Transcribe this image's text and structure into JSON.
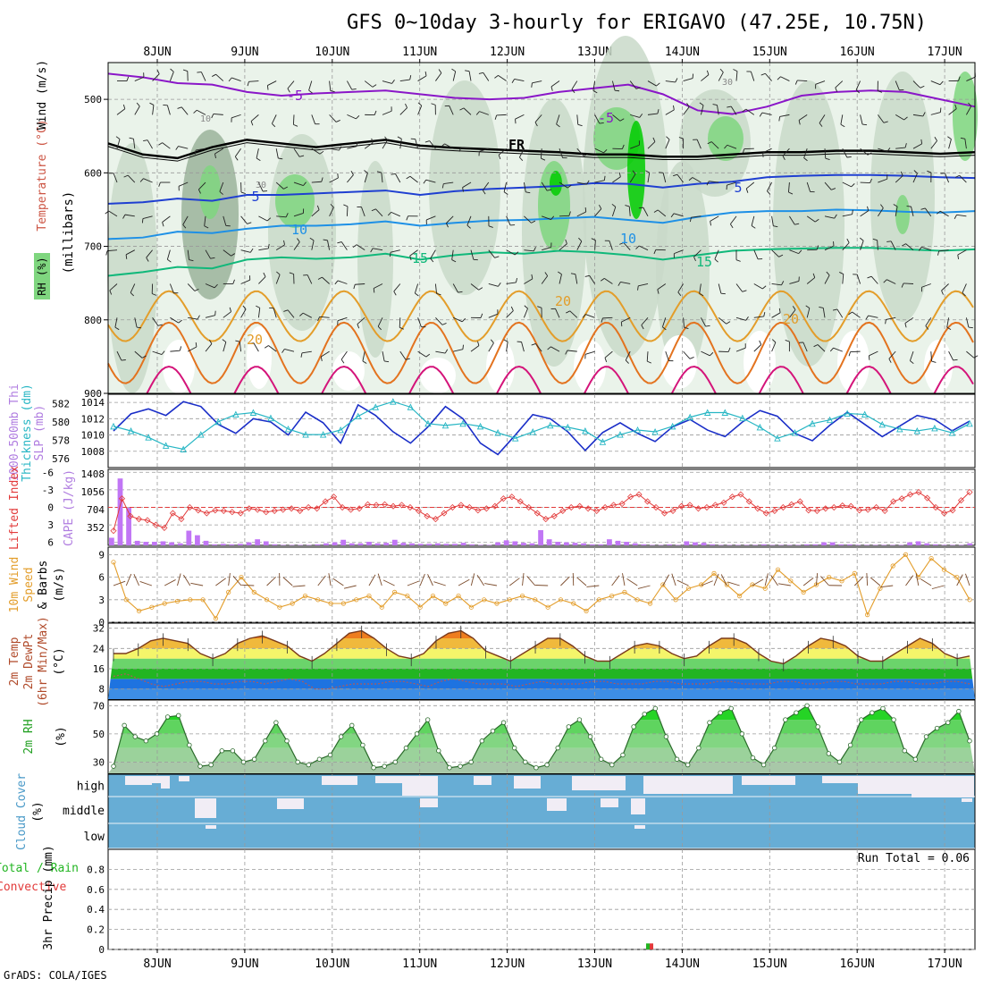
{
  "title": "GFS 0~10day 3-hourly for ERIGAVO (47.25E, 10.75N)",
  "footer": "GrADS: COLA/IGES",
  "dates": [
    "8JUN",
    "9JUN",
    "10JUN",
    "11JUN",
    "12JUN",
    "13JUN",
    "14JUN",
    "15JUN",
    "16JUN",
    "17JUN"
  ],
  "colors": {
    "rh_light": "#eaf3ea",
    "rh_mid": "#c9d9c9",
    "rh_dark": "#9bb39b",
    "rh_green": "#7fd67f",
    "rh_bright": "#00cc00",
    "temp_m5": "#8a16c8",
    "temp_5": "#1f3fd1",
    "temp_10": "#1e90e6",
    "temp_15": "#10b87a",
    "temp_20": "#e39d2a",
    "temp_25": "#e3731f",
    "temp_30": "#d4147a",
    "slp": "#1a2ec8",
    "thickness": "#27b6c4",
    "lifted": "#e23a3a",
    "cape": "#c176f5",
    "wind10m": "#e39d2a",
    "cloud_bg": "#67add5",
    "cloud_gap": "#f1edf5",
    "precip_total": "#22b522",
    "precip_conv": "#e23a3a"
  },
  "chart_data": [
    {
      "type": "heatmap",
      "panel": "upper-air",
      "ylabels": [
        "RH (%)",
        "Temperature (°C)",
        "Wind (m/s)",
        "(millibars)"
      ],
      "yticks": [
        500,
        600,
        700,
        800,
        900
      ],
      "ylim": [
        900,
        450
      ],
      "contour_labels": [
        {
          "text": "-5",
          "value": -5
        },
        {
          "text": "5",
          "value": 5
        },
        {
          "text": "10",
          "value": 10
        },
        {
          "text": "15",
          "value": 15
        },
        {
          "text": "20",
          "value": 20
        },
        {
          "text": "FR",
          "value": 0
        },
        {
          "text": "10",
          "value": 10,
          "field": "rh"
        },
        {
          "text": "30",
          "value": 30,
          "field": "rh"
        }
      ],
      "series": [
        {
          "name": "-5",
          "level_mb": [
            465,
            470,
            478,
            480,
            490,
            495,
            492,
            490,
            488,
            493,
            498,
            500,
            498,
            490,
            485,
            480,
            493,
            515,
            520,
            510,
            495,
            490,
            488,
            490,
            500,
            510
          ]
        },
        {
          "name": "5",
          "level_mb": [
            642,
            640,
            635,
            638,
            630,
            630,
            628,
            626,
            624,
            630,
            625,
            622,
            620,
            618,
            614,
            615,
            620,
            615,
            612,
            606,
            604,
            603,
            603,
            604,
            606,
            607
          ]
        },
        {
          "name": "10",
          "level_mb": [
            690,
            688,
            680,
            682,
            676,
            672,
            672,
            670,
            666,
            672,
            668,
            665,
            664,
            662,
            660,
            664,
            668,
            660,
            654,
            652,
            652,
            650,
            651,
            653,
            654,
            652
          ]
        },
        {
          "name": "15",
          "level_mb": [
            740,
            735,
            728,
            730,
            718,
            715,
            717,
            715,
            710,
            718,
            712,
            708,
            710,
            706,
            708,
            712,
            718,
            712,
            706,
            704,
            703,
            702,
            702,
            704,
            706,
            704
          ]
        },
        {
          "name": "FR",
          "level_mb": [
            560,
            575,
            580,
            565,
            555,
            560,
            565,
            560,
            555,
            563,
            566,
            568,
            570,
            572,
            575,
            575,
            578,
            578,
            575,
            572,
            572,
            570,
            570,
            572,
            574,
            572
          ]
        }
      ]
    },
    {
      "type": "line",
      "panel": "slp-thickness",
      "ylabels": [
        "1000-500mb Thickness (dm)",
        "SLP (mb)"
      ],
      "left_ticks": [
        576,
        578,
        580,
        582
      ],
      "right_ticks": [
        1008,
        1010,
        1012,
        1014
      ],
      "series": [
        {
          "name": "SLP",
          "axis": "right",
          "values": [
            1010.5,
            1012.6,
            1013.2,
            1012.4,
            1014.1,
            1013.5,
            1011.3,
            1010.2,
            1012.0,
            1011.6,
            1010.0,
            1012.8,
            1011.5,
            1009.0,
            1013.7,
            1012.4,
            1010.4,
            1009.0,
            1011.0,
            1013.5,
            1012.0,
            1009.0,
            1007.6,
            1010.0,
            1012.5,
            1012.0,
            1010.4,
            1008.1,
            1010.3,
            1011.5,
            1010.2,
            1009.2,
            1011.0,
            1011.9,
            1010.6,
            1009.8,
            1011.6,
            1013.0,
            1012.3,
            1010.2,
            1009.3,
            1011.2,
            1012.8,
            1011.3,
            1009.8,
            1011.1,
            1012.4,
            1011.9,
            1010.5,
            1011.7
          ]
        },
        {
          "name": "Thickness",
          "axis": "left",
          "values": [
            579.5,
            579.0,
            578.3,
            577.4,
            577.0,
            578.6,
            580.0,
            580.8,
            581.0,
            580.4,
            579.2,
            578.6,
            578.6,
            579.1,
            580.6,
            581.6,
            582.2,
            581.6,
            579.8,
            579.6,
            579.8,
            579.5,
            578.8,
            578.2,
            578.9,
            579.6,
            579.4,
            579.0,
            577.8,
            578.6,
            579.1,
            578.9,
            579.5,
            580.5,
            581.0,
            581.0,
            580.4,
            579.4,
            578.2,
            578.8,
            579.8,
            580.2,
            580.9,
            580.8,
            579.7,
            579.2,
            579.0,
            579.3,
            578.8,
            579.8
          ]
        }
      ]
    },
    {
      "type": "bar",
      "panel": "cape-lifted",
      "ylabels": [
        "Lifted Index",
        "CAPE (J/kg)"
      ],
      "left_ticks": [
        6,
        3,
        0,
        -3,
        -6
      ],
      "right_ticks": [
        352,
        704,
        1056,
        1408
      ],
      "series": [
        {
          "name": "CAPE",
          "axis": "right",
          "values": [
            150,
            1320,
            740,
            90,
            70,
            70,
            80,
            60,
            40,
            290,
            200,
            90,
            20,
            30,
            20,
            30,
            60,
            120,
            80,
            20,
            10,
            10,
            10,
            10,
            20,
            40,
            60,
            110,
            40,
            40,
            70,
            40,
            50,
            110,
            50,
            40,
            30,
            30,
            40,
            30,
            30,
            50,
            20,
            10,
            10,
            60,
            100,
            80,
            50,
            40,
            300,
            120,
            70,
            60,
            50,
            40,
            20,
            20,
            120,
            90,
            70,
            40,
            20,
            10,
            10,
            20,
            10,
            80,
            60,
            50,
            20,
            10,
            10,
            10,
            10,
            10,
            20,
            10,
            10,
            10,
            10,
            20,
            20,
            60,
            60,
            20,
            20,
            10,
            10,
            10,
            10,
            10,
            10,
            60,
            80,
            40,
            20,
            10,
            10,
            10,
            40
          ]
        },
        {
          "name": "Lifted Index",
          "axis": "left",
          "values": [
            4.0,
            -1.5,
            1.5,
            2.0,
            2.2,
            3.0,
            3.5,
            1.0,
            2.0,
            0.0,
            0.5,
            1.0,
            0.5,
            0.6,
            0.8,
            1.0,
            0.2,
            0.4,
            0.8,
            0.6,
            0.4,
            0.2,
            0.6,
            0.0,
            0.2,
            -1.0,
            -1.8,
            0.0,
            0.4,
            0.2,
            -0.5,
            -0.4,
            -0.5,
            -0.2,
            -0.4,
            0.0,
            0.6,
            1.5,
            2.0,
            1.0,
            0.0,
            -0.4,
            0.0,
            0.5,
            0.2,
            -0.2,
            -1.5,
            -1.8,
            -1.0,
            0.0,
            1.0,
            2.0,
            1.5,
            0.6,
            0.0,
            -0.2,
            0.2,
            0.6,
            0.0,
            -0.4,
            -0.6,
            -1.8,
            -2.2,
            -1.0,
            0.0,
            1.0,
            0.6,
            -0.2,
            -0.4,
            0.2,
            0.0,
            -0.4,
            -0.8,
            -1.8,
            -2.2,
            -1.0,
            0.2,
            1.0,
            0.6,
            0.0,
            -0.5,
            -1.0,
            0.5,
            0.6,
            0.2,
            0.0,
            -0.3,
            -0.2,
            0.5,
            0.4,
            0.0,
            0.6,
            -1.0,
            -1.5,
            -2.2,
            -2.6,
            -1.6,
            0.0,
            1.0,
            0.5,
            -1.2,
            -2.6
          ]
        }
      ]
    },
    {
      "type": "line",
      "panel": "wind10m",
      "ylabels": [
        "10m Wind",
        "Speed",
        "& Barbs",
        "(m/s)"
      ],
      "yticks": [
        0,
        3,
        6,
        9
      ],
      "series": [
        {
          "name": "10m Wind Speed",
          "values": [
            8.0,
            3.0,
            1.5,
            2.0,
            2.5,
            2.8,
            3.0,
            3.0,
            0.5,
            4.0,
            6.0,
            4.0,
            3.0,
            2.0,
            2.5,
            3.5,
            3.0,
            2.5,
            2.5,
            3.0,
            3.5,
            2.0,
            4.0,
            3.5,
            2.0,
            3.5,
            2.5,
            3.5,
            2.0,
            3.0,
            2.5,
            3.0,
            3.5,
            3.0,
            2.0,
            3.0,
            2.5,
            1.5,
            3.0,
            3.5,
            4.0,
            3.0,
            2.5,
            5.0,
            3.0,
            4.5,
            5.0,
            6.5,
            5.0,
            3.5,
            5.0,
            4.5,
            7.0,
            5.5,
            4.0,
            5.0,
            6.0,
            5.5,
            6.5,
            1.0,
            4.5,
            7.5,
            9.0,
            6.0,
            8.5,
            7.0,
            6.0,
            3.0
          ]
        }
      ]
    },
    {
      "type": "area",
      "panel": "temp-dewpt",
      "ylabels": [
        "2m Temp",
        "2m DewPt",
        "(6hr Min/Max)",
        "(°C)"
      ],
      "yticks": [
        8,
        16,
        24,
        32
      ],
      "series": [
        {
          "name": "2m Temp",
          "values": [
            22,
            22,
            24,
            27,
            28,
            27,
            26,
            22,
            20,
            22,
            26,
            28,
            29,
            27,
            25,
            21,
            19,
            22,
            26,
            30,
            31,
            28,
            24,
            21,
            20,
            22,
            27,
            30,
            31,
            28,
            23,
            21,
            19,
            22,
            25,
            28,
            28,
            25,
            21,
            19,
            19,
            22,
            25,
            26,
            25,
            22,
            20,
            21,
            25,
            28,
            28,
            26,
            22,
            19,
            18,
            21,
            25,
            28,
            27,
            25,
            21,
            19,
            19,
            22,
            25,
            28,
            26,
            22,
            20,
            21
          ]
        },
        {
          "name": "2m DewPt",
          "values": [
            13,
            14,
            12,
            10,
            9,
            10,
            11,
            11,
            10,
            10,
            11,
            11,
            10,
            11,
            12,
            11,
            8,
            8,
            9,
            10,
            10,
            10,
            11,
            11,
            10,
            9,
            11,
            12,
            11,
            10,
            10,
            10,
            9,
            10,
            11,
            10,
            10,
            10,
            11,
            11,
            10,
            10,
            10,
            11,
            11,
            10,
            10,
            10,
            11,
            11,
            10,
            10,
            10,
            11,
            11,
            10,
            10,
            11,
            11,
            10,
            10,
            10,
            11,
            11,
            10,
            10,
            11,
            11,
            10
          ]
        }
      ]
    },
    {
      "type": "area",
      "panel": "rh2m",
      "ylabels": [
        "2m RH",
        "(%)"
      ],
      "yticks": [
        30,
        50,
        70
      ],
      "series": [
        {
          "name": "2m RH",
          "values": [
            27,
            56,
            48,
            45,
            50,
            62,
            63,
            42,
            27,
            28,
            38,
            38,
            30,
            32,
            45,
            58,
            45,
            30,
            28,
            32,
            35,
            48,
            56,
            42,
            26,
            27,
            30,
            40,
            50,
            60,
            38,
            26,
            27,
            30,
            45,
            52,
            58,
            40,
            30,
            26,
            28,
            40,
            55,
            60,
            48,
            32,
            28,
            35,
            55,
            64,
            68,
            48,
            32,
            28,
            40,
            58,
            65,
            68,
            50,
            33,
            28,
            40,
            60,
            65,
            70,
            55,
            36,
            30,
            42,
            60,
            65,
            68,
            60,
            38,
            32,
            48,
            54,
            58,
            66,
            45
          ]
        }
      ]
    },
    {
      "type": "bar",
      "panel": "cloud",
      "ylabels": [
        "Cloud Cover",
        "(%)"
      ],
      "categories": [
        "high",
        "middle",
        "low"
      ]
    },
    {
      "type": "bar",
      "panel": "precip",
      "ylabels": [
        "Total / Rain",
        "Convective",
        "3hr Precip (mm)"
      ],
      "yticks": [
        0,
        0.2,
        0.4,
        0.6,
        0.8
      ],
      "annotation": "Run Total = 0.06",
      "series": [
        {
          "name": "Total / Rain",
          "values": [
            0.06
          ]
        },
        {
          "name": "Convective",
          "values": [
            0.06
          ]
        }
      ]
    }
  ]
}
